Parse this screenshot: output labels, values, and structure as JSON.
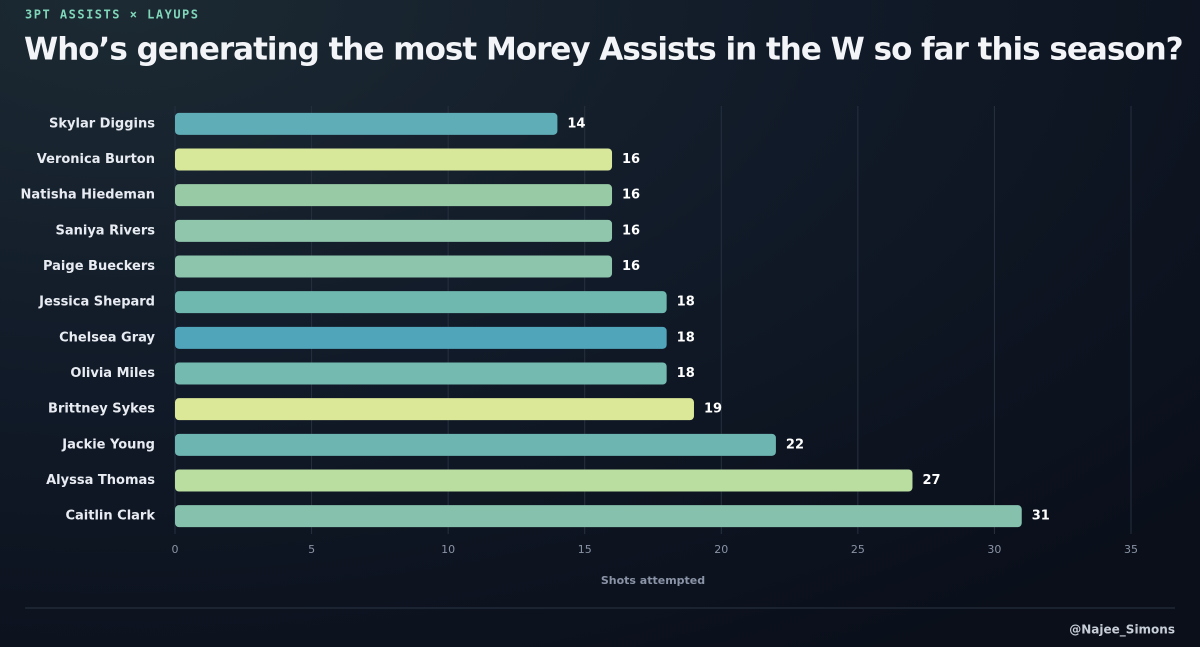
{
  "chart_data": {
    "type": "bar",
    "orientation": "horizontal",
    "subtitle": "3PT ASSISTS × LAYUPS",
    "title": "Who’s generating the most Morey Assists in the W so far this season?",
    "categories": [
      "Skylar Diggins",
      "Veronica Burton",
      "Natisha Hiedeman",
      "Saniya Rivers",
      "Paige Bueckers",
      "Jessica Shepard",
      "Chelsea Gray",
      "Olivia Miles",
      "Brittney Sykes",
      "Jackie Young",
      "Alyssa Thomas",
      "Caitlin Clark"
    ],
    "values": [
      14,
      16,
      16,
      16,
      16,
      18,
      18,
      18,
      19,
      22,
      27,
      31
    ],
    "colors": [
      "#5fadb6",
      "#d8e89a",
      "#98cba5",
      "#8fc6ac",
      "#8cc5ac",
      "#6fb8b0",
      "#50a5bb",
      "#74bab0",
      "#dbe897",
      "#6cb5b1",
      "#b9dea0",
      "#86c1ad"
    ],
    "xlim": [
      0,
      35
    ],
    "xticks": [
      0,
      5,
      10,
      15,
      20,
      25,
      30,
      35
    ],
    "grid": true,
    "xlabel": "Shots attempted",
    "credit": "@Najee_Simons"
  }
}
